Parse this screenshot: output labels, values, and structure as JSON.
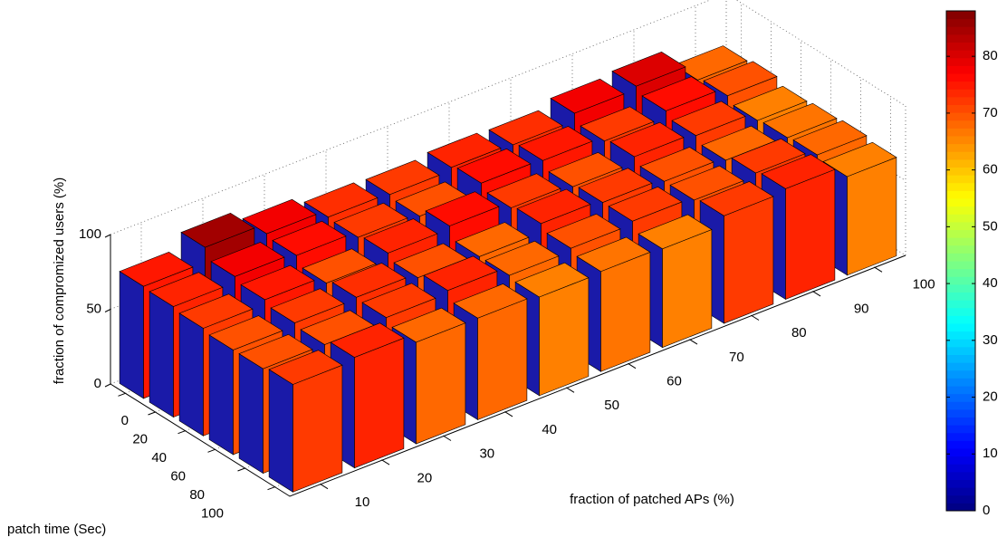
{
  "chart_data": {
    "type": "bar3d",
    "xlabel": "fraction of patched APs (%)",
    "ylabel": "patch time (Sec)",
    "zlabel": "fraction of compromized users (%)",
    "x_categories": [
      "10",
      "20",
      "30",
      "40",
      "50",
      "60",
      "70",
      "80",
      "90",
      "100"
    ],
    "y_categories": [
      "0",
      "20",
      "40",
      "60",
      "80",
      "100"
    ],
    "values": [
      [
        75,
        85,
        78,
        73,
        72,
        74,
        73,
        78,
        80,
        68
      ],
      [
        74,
        78,
        76,
        72,
        70,
        76,
        75,
        72,
        76,
        70
      ],
      [
        72,
        75,
        70,
        74,
        76,
        72,
        70,
        74,
        72,
        66
      ],
      [
        70,
        72,
        73,
        70,
        68,
        74,
        72,
        70,
        68,
        67
      ],
      [
        70,
        70,
        72,
        74,
        68,
        70,
        72,
        70,
        72,
        68
      ],
      [
        72,
        74,
        68,
        68,
        66,
        67,
        66,
        72,
        74,
        66
      ]
    ],
    "zlim": [
      0,
      100
    ],
    "zticks": [
      0,
      50,
      100
    ],
    "grid": true,
    "colormap": "jet",
    "side_color": "#1a1aa8",
    "clim": [
      0,
      88
    ],
    "colorbar_ticks": [
      0,
      10,
      20,
      30,
      40,
      50,
      60,
      70,
      80
    ]
  }
}
